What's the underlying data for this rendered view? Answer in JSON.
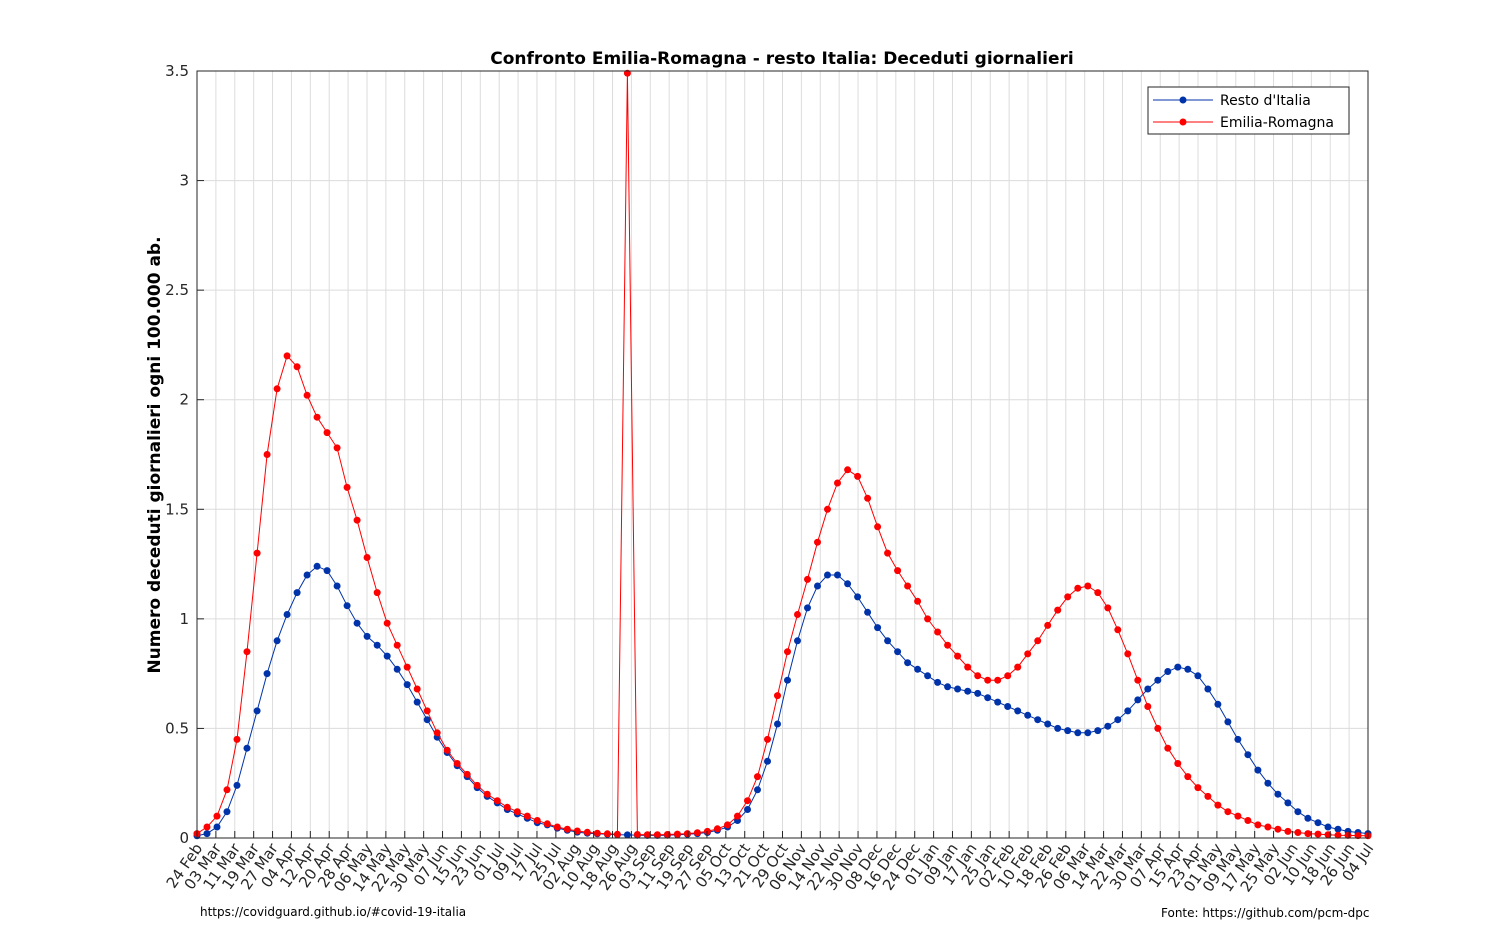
{
  "chart_data": {
    "type": "line",
    "title": "Confronto Emilia-Romagna - resto Italia: Deceduti giornalieri",
    "ylabel": "Numero deceduti giornalieri ogni 100.000 ab.",
    "xlabel": "",
    "ylim": [
      0,
      3.5
    ],
    "yticks": [
      "0",
      "0.5",
      "1",
      "1.5",
      "2",
      "2.5",
      "3",
      "3.5"
    ],
    "grid": true,
    "legend_position": "top-right",
    "xticks": [
      "24 Feb",
      "03 Mar",
      "11 Mar",
      "19 Mar",
      "27 Mar",
      "04 Apr",
      "12 Apr",
      "20 Apr",
      "28 Apr",
      "06 May",
      "14 May",
      "22 May",
      "30 May",
      "07 Jun",
      "15 Jun",
      "23 Jun",
      "01 Jul",
      "09 Jul",
      "17 Jul",
      "25 Jul",
      "02 Aug",
      "10 Aug",
      "18 Aug",
      "26 Aug",
      "03 Sep",
      "11 Sep",
      "19 Sep",
      "27 Sep",
      "05 Oct",
      "13 Oct",
      "21 Oct",
      "29 Oct",
      "06 Nov",
      "14 Nov",
      "22 Nov",
      "30 Nov",
      "08 Dec",
      "16 Dec",
      "24 Dec",
      "01 Jan",
      "09 Jan",
      "17 Jan",
      "25 Jan",
      "02 Feb",
      "10 Feb",
      "18 Feb",
      "26 Feb",
      "06 Mar",
      "14 Mar",
      "22 Mar",
      "30 Mar",
      "07 Apr",
      "15 Apr",
      "23 Apr",
      "01 May",
      "09 May",
      "17 May",
      "25 May",
      "02 Jun",
      "10 Jun",
      "18 Jun",
      "26 Jun",
      "04 Jul"
    ],
    "series": [
      {
        "name": "Resto d'Italia",
        "color": "#0033aa",
        "values": [
          0.01,
          0.02,
          0.05,
          0.12,
          0.24,
          0.41,
          0.58,
          0.75,
          0.9,
          1.02,
          1.12,
          1.2,
          1.24,
          1.22,
          1.15,
          1.06,
          0.98,
          0.92,
          0.88,
          0.83,
          0.77,
          0.7,
          0.62,
          0.54,
          0.46,
          0.39,
          0.33,
          0.28,
          0.23,
          0.19,
          0.16,
          0.13,
          0.11,
          0.09,
          0.07,
          0.06,
          0.045,
          0.035,
          0.027,
          0.022,
          0.019,
          0.017,
          0.015,
          0.014,
          0.013,
          0.012,
          0.012,
          0.013,
          0.015,
          0.017,
          0.02,
          0.025,
          0.035,
          0.05,
          0.08,
          0.13,
          0.22,
          0.35,
          0.52,
          0.72,
          0.9,
          1.05,
          1.15,
          1.2,
          1.2,
          1.16,
          1.1,
          1.03,
          0.96,
          0.9,
          0.85,
          0.8,
          0.77,
          0.74,
          0.71,
          0.69,
          0.68,
          0.67,
          0.66,
          0.64,
          0.62,
          0.6,
          0.58,
          0.56,
          0.54,
          0.52,
          0.5,
          0.49,
          0.48,
          0.48,
          0.49,
          0.51,
          0.54,
          0.58,
          0.63,
          0.68,
          0.72,
          0.76,
          0.78,
          0.77,
          0.74,
          0.68,
          0.61,
          0.53,
          0.45,
          0.38,
          0.31,
          0.25,
          0.2,
          0.16,
          0.12,
          0.09,
          0.07,
          0.05,
          0.04,
          0.03,
          0.025,
          0.02
        ]
      },
      {
        "name": "Emilia-Romagna",
        "color": "#ff0000",
        "values": [
          0.02,
          0.05,
          0.1,
          0.22,
          0.45,
          0.85,
          1.3,
          1.75,
          2.05,
          2.2,
          2.15,
          2.02,
          1.92,
          1.85,
          1.78,
          1.6,
          1.45,
          1.28,
          1.12,
          0.98,
          0.88,
          0.78,
          0.68,
          0.58,
          0.48,
          0.4,
          0.34,
          0.29,
          0.24,
          0.2,
          0.17,
          0.14,
          0.12,
          0.1,
          0.08,
          0.065,
          0.05,
          0.04,
          0.032,
          0.026,
          0.022,
          0.019,
          0.017,
          3.49,
          0.016,
          0.015,
          0.015,
          0.016,
          0.018,
          0.02,
          0.024,
          0.03,
          0.042,
          0.06,
          0.1,
          0.17,
          0.28,
          0.45,
          0.65,
          0.85,
          1.02,
          1.18,
          1.35,
          1.5,
          1.62,
          1.68,
          1.65,
          1.55,
          1.42,
          1.3,
          1.22,
          1.15,
          1.08,
          1.0,
          0.94,
          0.88,
          0.83,
          0.78,
          0.74,
          0.72,
          0.72,
          0.74,
          0.78,
          0.84,
          0.9,
          0.97,
          1.04,
          1.1,
          1.14,
          1.15,
          1.12,
          1.05,
          0.95,
          0.84,
          0.72,
          0.6,
          0.5,
          0.41,
          0.34,
          0.28,
          0.23,
          0.19,
          0.15,
          0.12,
          0.1,
          0.08,
          0.06,
          0.05,
          0.04,
          0.03,
          0.025,
          0.02,
          0.018,
          0.015,
          0.013,
          0.012,
          0.011,
          0.01
        ]
      }
    ]
  },
  "footer": {
    "left": "https://covidguard.github.io/#covid-19-italia",
    "right": "Fonte: https://github.com/pcm-dpc"
  }
}
